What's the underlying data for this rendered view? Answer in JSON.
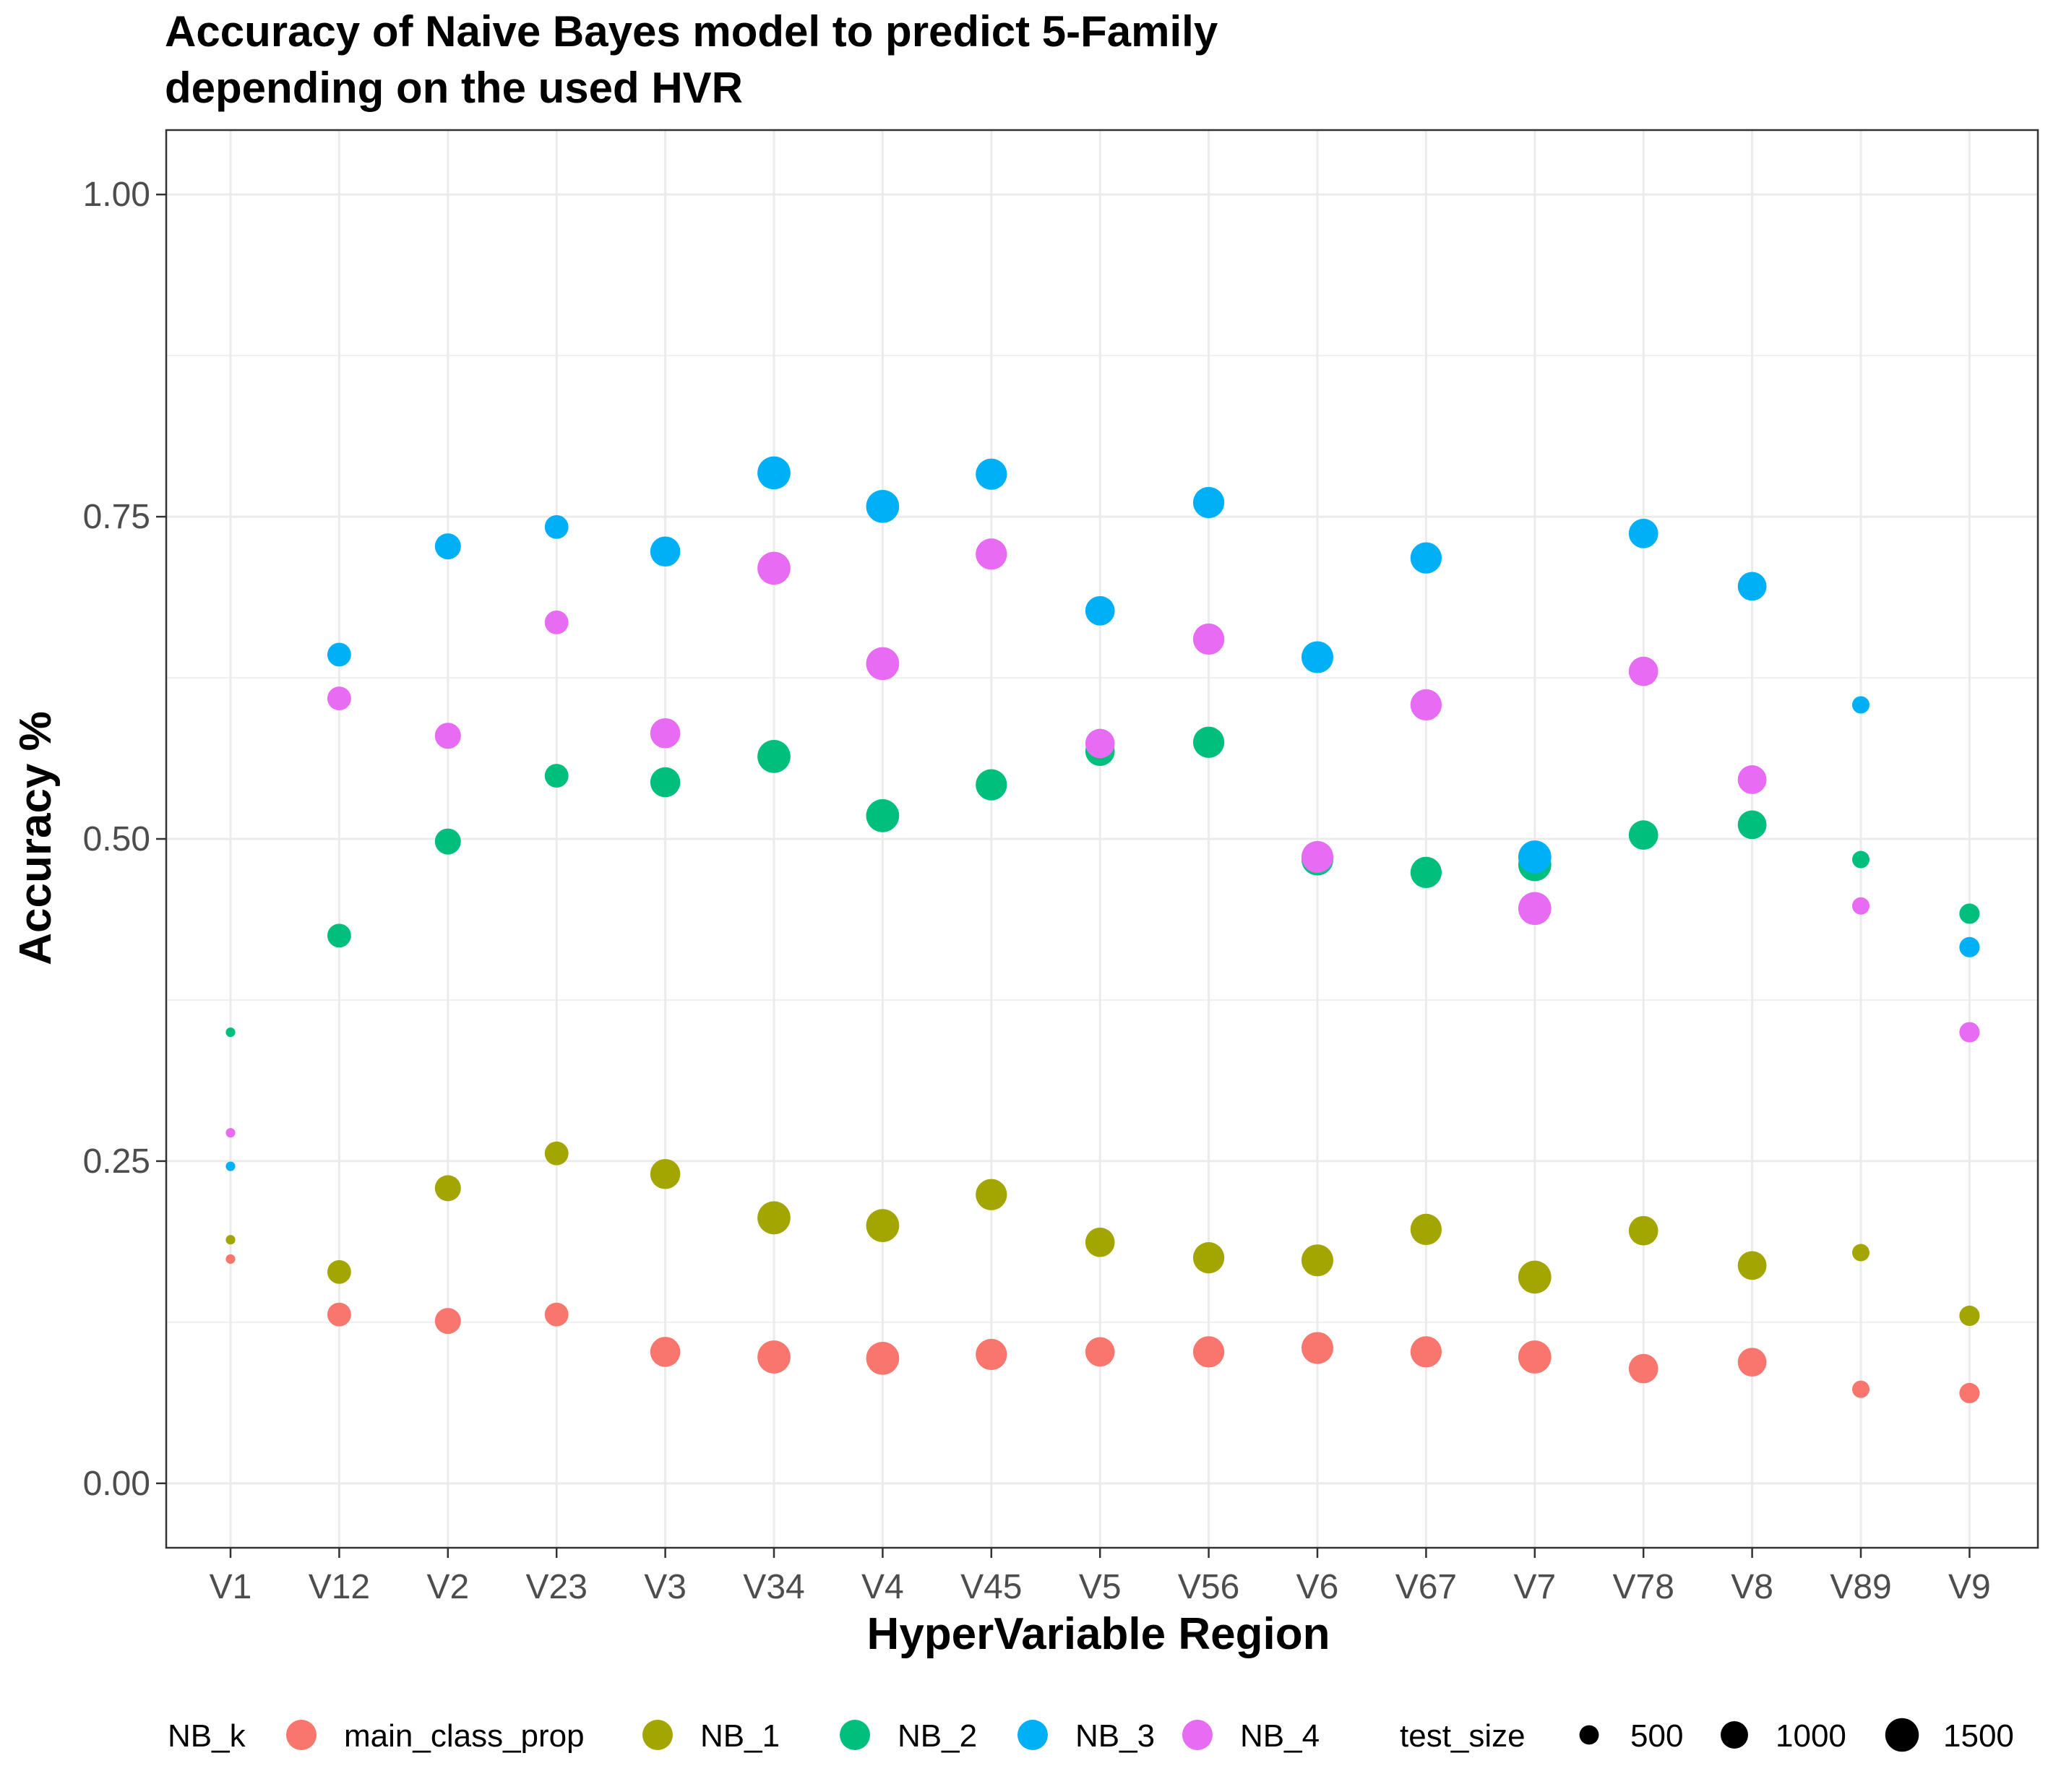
{
  "chart_data": {
    "type": "scatter",
    "title_line1": "Accuracy of Naive Bayes model to predict 5-Family",
    "title_line2": "depending on the used HVR",
    "xlabel": "HyperVariable Region",
    "ylabel": "Accuracy %",
    "ylim": [
      -0.05,
      1.05
    ],
    "yticks": [
      "0.00",
      "0.25",
      "0.50",
      "0.75",
      "1.00"
    ],
    "grid": true,
    "categories": [
      "V1",
      "V12",
      "V2",
      "V23",
      "V3",
      "V34",
      "V4",
      "V45",
      "V5",
      "V56",
      "V6",
      "V67",
      "V7",
      "V78",
      "V8",
      "V89",
      "V9"
    ],
    "test_size": [
      120,
      750,
      900,
      750,
      1200,
      1450,
      1450,
      1300,
      1150,
      1300,
      1350,
      1300,
      1450,
      1150,
      1100,
      400,
      550
    ],
    "series": [
      {
        "name": "main_class_prop",
        "color": "#F8766D",
        "values": [
          0.174,
          0.131,
          0.126,
          0.131,
          0.102,
          0.098,
          0.097,
          0.1,
          0.102,
          0.102,
          0.105,
          0.102,
          0.098,
          0.089,
          0.094,
          0.073,
          0.07
        ]
      },
      {
        "name": "NB_1",
        "color": "#A3A500",
        "values": [
          0.189,
          0.164,
          0.229,
          0.256,
          0.24,
          0.206,
          0.2,
          0.224,
          0.187,
          0.175,
          0.173,
          0.197,
          0.16,
          0.196,
          0.169,
          0.179,
          0.13
        ]
      },
      {
        "name": "NB_2",
        "color": "#00BF7D",
        "values": [
          0.35,
          0.425,
          0.498,
          0.549,
          0.544,
          0.564,
          0.518,
          0.542,
          0.568,
          0.575,
          0.484,
          0.474,
          0.48,
          0.503,
          0.511,
          0.484,
          0.442
        ]
      },
      {
        "name": "NB_3",
        "color": "#00B0F6",
        "values": [
          0.246,
          0.643,
          0.727,
          0.742,
          0.723,
          0.784,
          0.758,
          0.783,
          0.677,
          0.761,
          0.641,
          0.718,
          0.486,
          0.737,
          0.696,
          0.604,
          0.416
        ]
      },
      {
        "name": "NB_4",
        "color": "#E76BF3",
        "values": [
          0.272,
          0.609,
          0.58,
          0.668,
          0.582,
          0.71,
          0.636,
          0.721,
          0.574,
          0.655,
          0.486,
          0.604,
          0.446,
          0.63,
          0.546,
          0.448,
          0.35
        ]
      }
    ],
    "legend": {
      "position": "bottom",
      "color_title": "NB_k",
      "size_title": "test_size",
      "size_values": [
        500,
        1000,
        1500
      ]
    }
  }
}
